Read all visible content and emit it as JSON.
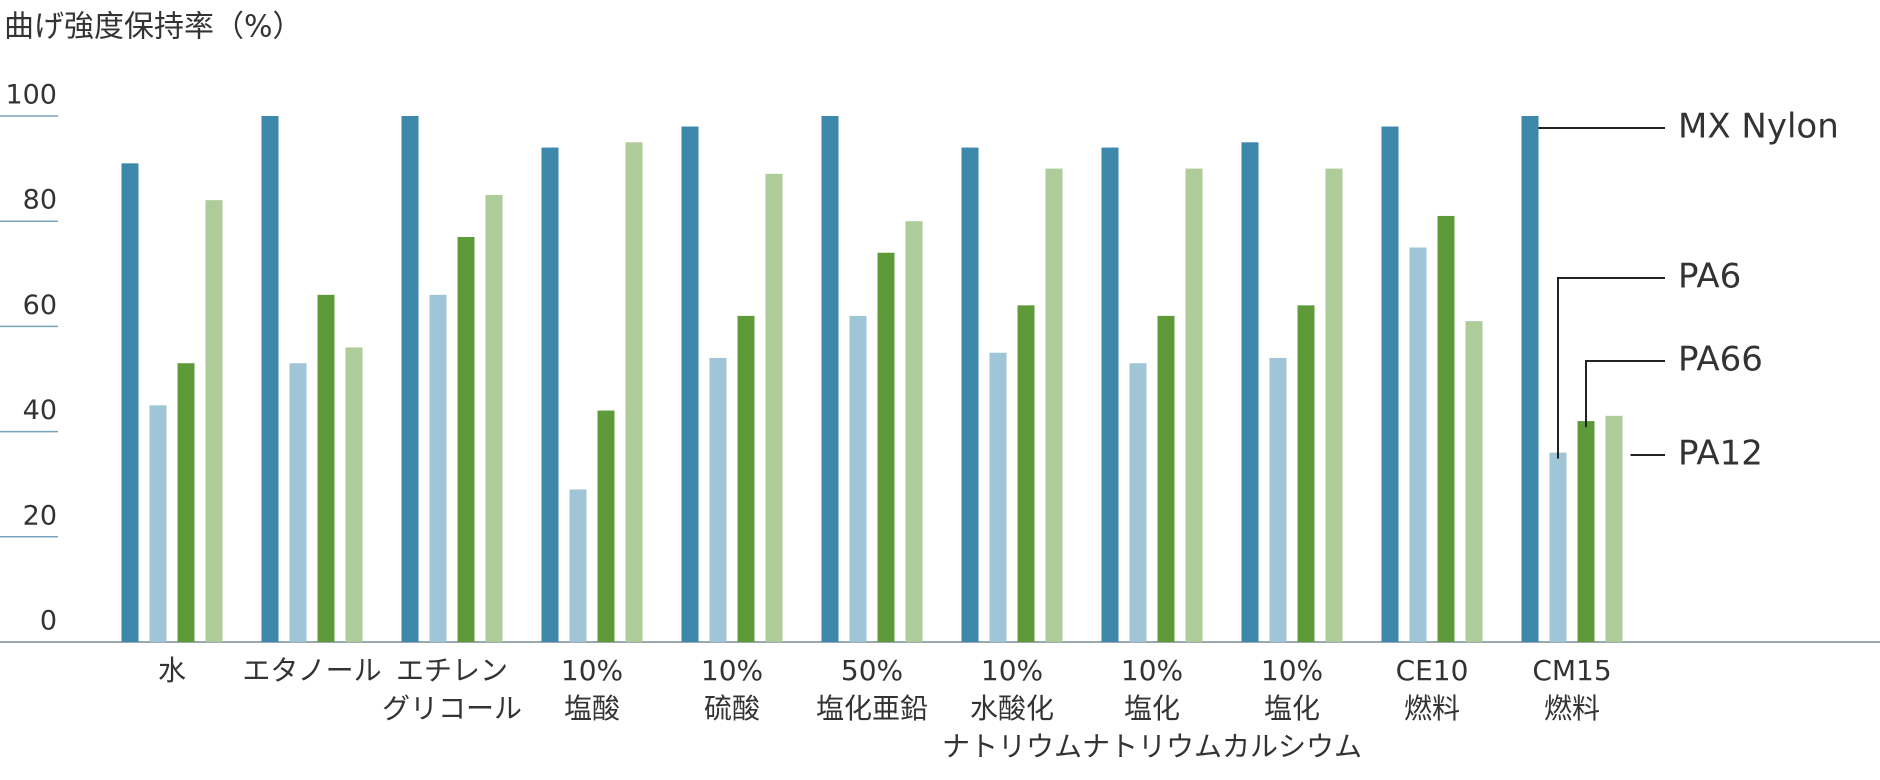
{
  "chart_data": {
    "type": "bar",
    "title": "曲げ強度保持率（%）",
    "categories": [
      "水",
      "エタノール",
      "エチレン\nグリコール",
      "10%\n塩酸",
      "10%\n硫酸",
      "50%\n塩化亜鉛",
      "10%\n水酸化\nナトリウム",
      "10%\n塩化\nナトリウム",
      "10%\n塩化\nカルシウム",
      "CE10\n燃料",
      "CM15\n燃料"
    ],
    "series": [
      {
        "name": "MX Nylon",
        "color": "#3d88ab",
        "values": [
          91,
          100,
          100,
          94,
          98,
          100,
          94,
          94,
          95,
          98,
          100
        ]
      },
      {
        "name": "PA6",
        "color": "#9fc5d6",
        "values": [
          45,
          53,
          66,
          29,
          54,
          62,
          55,
          53,
          54,
          75,
          36
        ]
      },
      {
        "name": "PA66",
        "color": "#5f9a39",
        "values": [
          53,
          66,
          77,
          44,
          62,
          74,
          64,
          62,
          64,
          81,
          42
        ]
      },
      {
        "name": "PA12",
        "color": "#aecb9a",
        "values": [
          84,
          56,
          85,
          95,
          89,
          80,
          90,
          90,
          90,
          61,
          43
        ]
      }
    ],
    "ylim": [
      0,
      100
    ],
    "yticks": [
      0,
      20,
      40,
      60,
      80,
      100
    ]
  }
}
